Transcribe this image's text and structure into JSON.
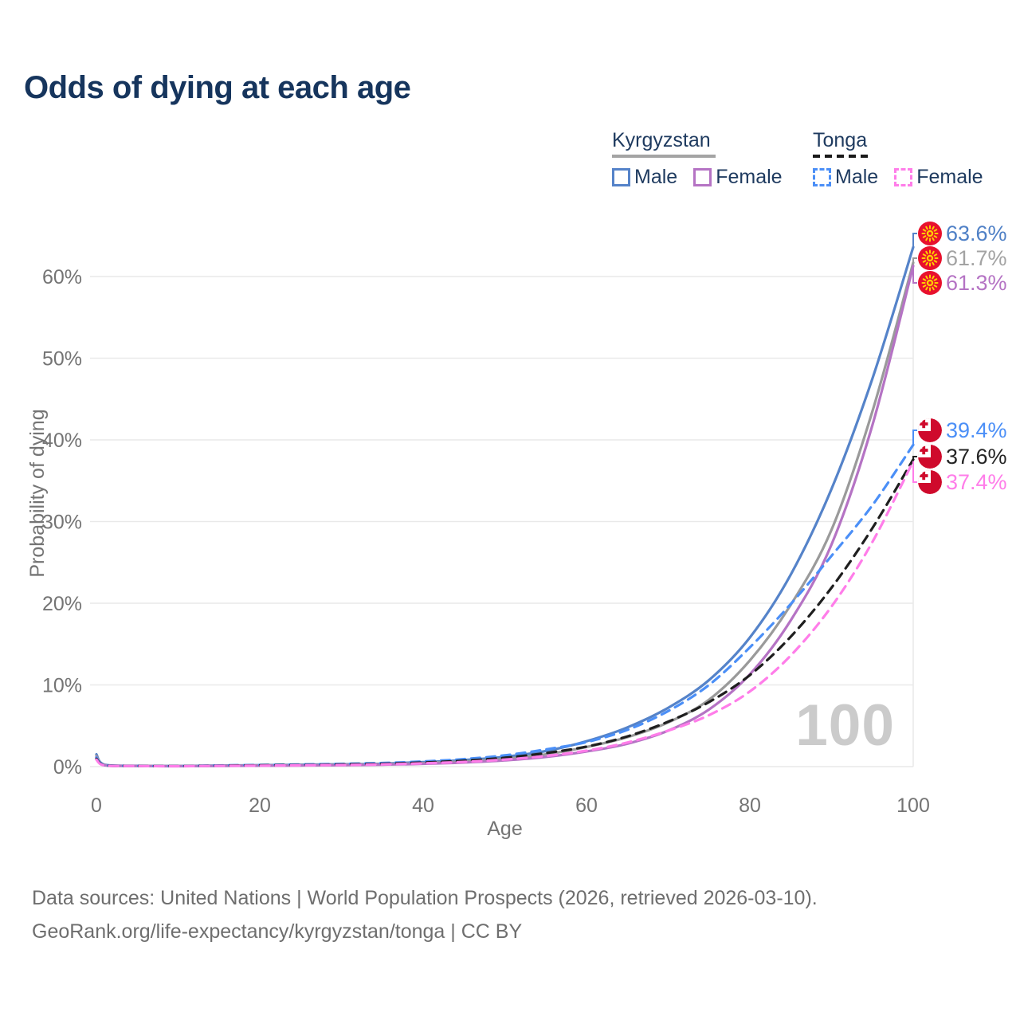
{
  "title": "Odds of dying at each age",
  "watermark": "100",
  "legend": {
    "groups": [
      {
        "country": "Kyrgyzstan",
        "style": "solid",
        "underline_color": "#a4a4a4",
        "items": [
          {
            "label": "Male",
            "color": "#5583c9",
            "dash": false
          },
          {
            "label": "Female",
            "color": "#b573c4",
            "dash": false
          }
        ]
      },
      {
        "country": "Tonga",
        "style": "dashed",
        "underline_color": "#1a1a1a",
        "items": [
          {
            "label": "Male",
            "color": "#4b8ff7",
            "dash": true
          },
          {
            "label": "Female",
            "color": "#ff7de9",
            "dash": true
          }
        ]
      }
    ]
  },
  "chart_data": {
    "type": "line",
    "title": "Odds of dying at each age",
    "xlabel": "Age",
    "ylabel": "Probability of dying",
    "x_ticks": [
      0,
      20,
      40,
      60,
      80,
      100
    ],
    "y_ticks_pct": [
      0,
      10,
      20,
      30,
      40,
      50,
      60
    ],
    "xlim": [
      0,
      100
    ],
    "ylim_pct": [
      0,
      65
    ],
    "grid": "horizontal",
    "legend_position": "top-right",
    "ages": [
      0,
      1,
      5,
      10,
      15,
      20,
      25,
      30,
      35,
      40,
      45,
      50,
      55,
      60,
      65,
      70,
      75,
      80,
      85,
      90,
      95,
      100
    ],
    "series": [
      {
        "id": "kyrgyzstan-male",
        "name": "Kyrgyzstan Male",
        "country": "Kyrgyzstan",
        "sex": "Male",
        "color": "#5583c9",
        "dash": "solid",
        "flag": "kyrgyzstan",
        "end_label": "63.6%",
        "label_color": "#4f80c6",
        "values_pct": [
          1.5,
          0.22,
          0.1,
          0.08,
          0.13,
          0.18,
          0.22,
          0.28,
          0.36,
          0.55,
          0.8,
          1.2,
          1.9,
          3.1,
          4.8,
          7.2,
          10.6,
          15.8,
          23.5,
          34.0,
          47.5,
          63.6
        ]
      },
      {
        "id": "kyrgyzstan-both",
        "name": "Kyrgyzstan (both sexes)",
        "country": "Kyrgyzstan",
        "sex": "Both",
        "color": "#9a9a9a",
        "dash": "solid",
        "flag": "kyrgyzstan",
        "end_label": "61.7%",
        "label_color": "#a3a3a3",
        "values_pct": [
          1.3,
          0.18,
          0.09,
          0.06,
          0.1,
          0.14,
          0.18,
          0.22,
          0.29,
          0.43,
          0.63,
          0.95,
          1.5,
          2.4,
          3.6,
          5.4,
          8.2,
          13.0,
          19.8,
          29.0,
          43.5,
          61.7
        ]
      },
      {
        "id": "kyrgyzstan-female",
        "name": "Kyrgyzstan Female",
        "country": "Kyrgyzstan",
        "sex": "Female",
        "color": "#b573c4",
        "dash": "solid",
        "flag": "kyrgyzstan",
        "end_label": "61.3%",
        "label_color": "#b573c4",
        "values_pct": [
          1.15,
          0.16,
          0.08,
          0.05,
          0.08,
          0.11,
          0.14,
          0.17,
          0.23,
          0.34,
          0.5,
          0.76,
          1.18,
          1.85,
          2.8,
          4.4,
          7.0,
          11.3,
          17.9,
          27.2,
          41.8,
          61.3
        ]
      },
      {
        "id": "tonga-male",
        "name": "Tonga Male",
        "country": "Tonga",
        "sex": "Male",
        "color": "#4b8ff7",
        "dash": "dashed",
        "flag": "tonga",
        "end_label": "39.4%",
        "label_color": "#4b8ff7",
        "values_pct": [
          1.1,
          0.18,
          0.09,
          0.07,
          0.14,
          0.2,
          0.26,
          0.33,
          0.44,
          0.63,
          0.92,
          1.38,
          2.1,
          3.0,
          4.5,
          6.8,
          10.0,
          14.6,
          19.9,
          25.8,
          32.0,
          39.4
        ]
      },
      {
        "id": "tonga-both",
        "name": "Tonga (both sexes)",
        "country": "Tonga",
        "sex": "Both",
        "color": "#1f1f1f",
        "dash": "dashed",
        "flag": "tonga",
        "end_label": "37.6%",
        "label_color": "#242424",
        "values_pct": [
          0.95,
          0.15,
          0.08,
          0.06,
          0.11,
          0.16,
          0.2,
          0.26,
          0.34,
          0.5,
          0.72,
          1.08,
          1.65,
          2.45,
          3.7,
          5.5,
          7.9,
          11.2,
          15.9,
          21.9,
          29.2,
          37.6
        ]
      },
      {
        "id": "tonga-female",
        "name": "Tonga Female",
        "country": "Tonga",
        "sex": "Female",
        "color": "#ff7de9",
        "dash": "dashed",
        "flag": "tonga",
        "end_label": "37.4%",
        "label_color": "#ff7de9",
        "values_pct": [
          0.85,
          0.13,
          0.07,
          0.05,
          0.09,
          0.12,
          0.16,
          0.2,
          0.27,
          0.4,
          0.58,
          0.86,
          1.3,
          1.95,
          2.95,
          4.4,
          6.3,
          9.2,
          13.6,
          19.6,
          27.5,
          37.4
        ]
      }
    ],
    "age_counter": "100"
  },
  "footer": {
    "line1": "Data sources: United Nations | World Population Prospects (2026, retrieved 2026-03-10).",
    "line2": "GeoRank.org/life-expectancy/kyrgyzstan/tonga | CC BY"
  }
}
